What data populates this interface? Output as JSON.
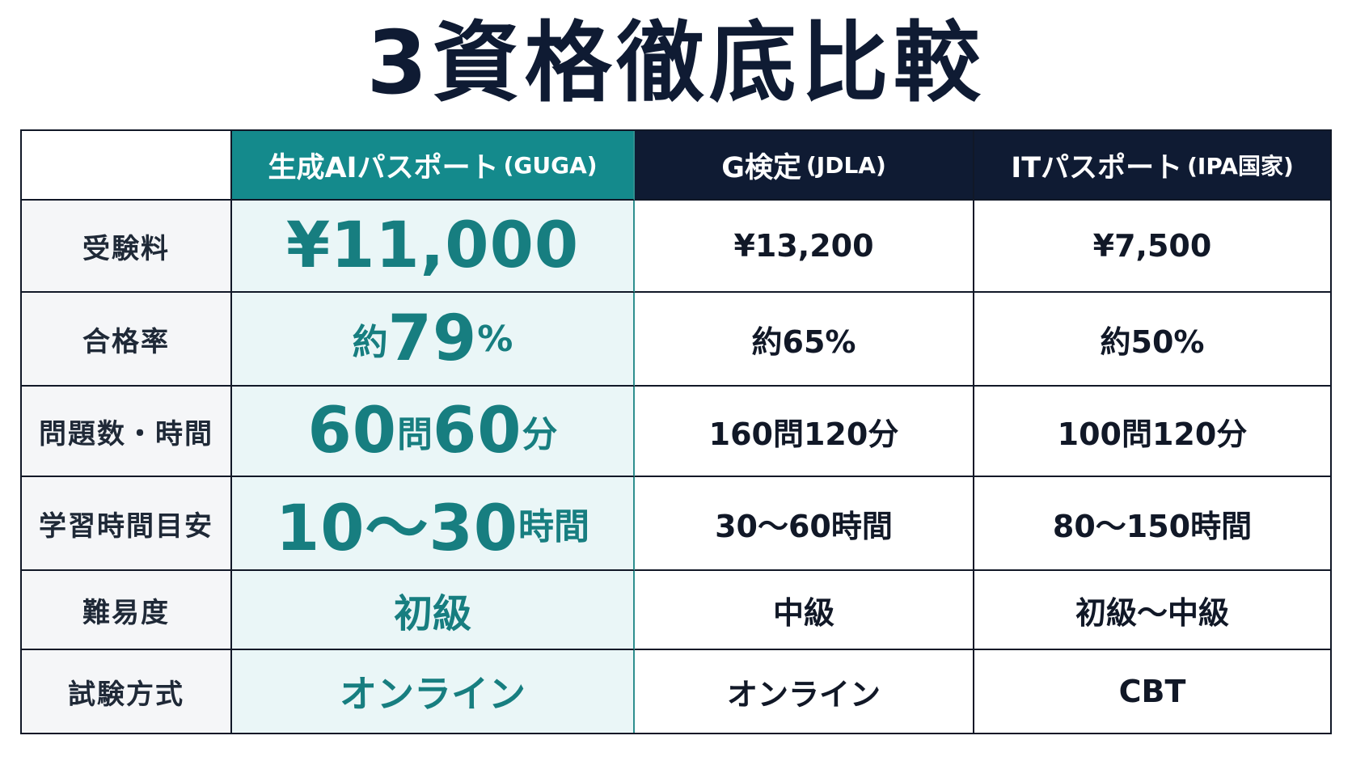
{
  "title": "3資格徹底比較",
  "headers": {
    "corner": "",
    "col1_main": "生成AIパスポート",
    "col1_sub": "(GUGA)",
    "col2_main": "G検定",
    "col2_sub": "(JDLA)",
    "col3_main": "ITパスポート",
    "col3_sub": "(IPA国家)"
  },
  "rows": [
    {
      "label": "受験料",
      "guga": "¥11,000",
      "g_kentei": "¥13,200",
      "it_passport": "¥7,500"
    },
    {
      "label": "合格率",
      "guga_prefix": "約",
      "guga_num": "79",
      "guga_suffix": "%",
      "g_kentei": "約65%",
      "it_passport": "約50%"
    },
    {
      "label": "問題数・時間",
      "guga_n1": "60",
      "guga_u1": "問",
      "guga_n2": "60",
      "guga_u2": "分",
      "g_kentei": "160問120分",
      "it_passport": "100問120分"
    },
    {
      "label": "学習時間目安",
      "guga_range": "10～30",
      "guga_unit": "時間",
      "g_kentei": "30～60時間",
      "it_passport": "80～150時間"
    },
    {
      "label": "難易度",
      "guga": "初級",
      "g_kentei": "中級",
      "it_passport": "初級～中級"
    },
    {
      "label": "試験方式",
      "guga": "オンライン",
      "g_kentei": "オンライン",
      "it_passport": "CBT"
    }
  ],
  "colors": {
    "featured_header": "#148a8c",
    "featured_text": "#177e80",
    "featured_bg": "#eaf6f7",
    "header_dark": "#0f1b33",
    "label_bg": "#f5f6f8"
  }
}
